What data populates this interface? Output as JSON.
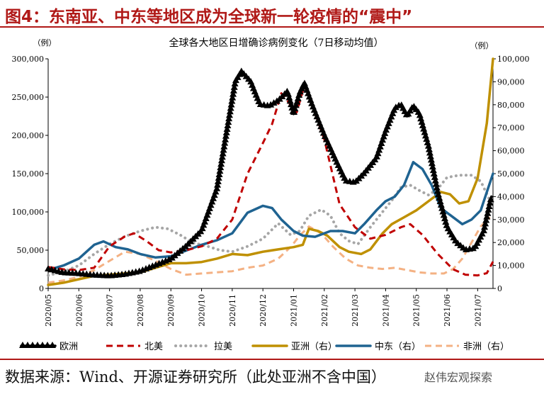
{
  "header": {
    "title": "图4：东南亚、中东等地区成为全球新一轮疫情的“震中”"
  },
  "footer": {
    "source": "数据来源：Wind、开源证券研究所（此处亚洲不含中国）",
    "watermark": "赵伟宏观探索"
  },
  "colors": {
    "title_red": "#b01917",
    "europe": "#000000",
    "north_america": "#c00000",
    "latin_america": "#a6a6a6",
    "asia": "#bf9000",
    "middle_east": "#1f6391",
    "africa": "#f4b183"
  },
  "chart_data": {
    "type": "line",
    "title": "全球各大地区日增确诊病例变化（7日移动均值）",
    "left_unit": "（例）",
    "right_unit": "（例）",
    "ylim_left": [
      0,
      300000
    ],
    "ylim_right": [
      0,
      100000
    ],
    "left_ticks": [
      "0",
      "50,000",
      "100,000",
      "150,000",
      "200,000",
      "250,000",
      "300,000"
    ],
    "right_ticks": [
      "0",
      "10,000",
      "20,000",
      "30,000",
      "40,000",
      "50,000",
      "60,000",
      "70,000",
      "80,000",
      "90,000",
      "100,000"
    ],
    "x_ticks": [
      "2020/05",
      "2020/06",
      "2020/07",
      "2020/08",
      "2020/09",
      "2020/10",
      "2020/11",
      "2020/12",
      "2021/01",
      "2021/02",
      "2021/03",
      "2021/04",
      "2021/05",
      "2021/06",
      "2021/07"
    ],
    "xlim": [
      0,
      14.5
    ],
    "series": [
      {
        "name": "欧洲",
        "axis": "left",
        "style": "solid-triangle",
        "points": [
          [
            0,
            25000
          ],
          [
            0.5,
            20000
          ],
          [
            1,
            19000
          ],
          [
            1.5,
            17000
          ],
          [
            2,
            16000
          ],
          [
            2.5,
            18000
          ],
          [
            3,
            22000
          ],
          [
            3.5,
            30000
          ],
          [
            4,
            38000
          ],
          [
            4.5,
            55000
          ],
          [
            5,
            75000
          ],
          [
            5.5,
            130000
          ],
          [
            5.8,
            200000
          ],
          [
            6.1,
            270000
          ],
          [
            6.3,
            283000
          ],
          [
            6.6,
            270000
          ],
          [
            6.9,
            240000
          ],
          [
            7.2,
            238000
          ],
          [
            7.5,
            245000
          ],
          [
            7.8,
            257000
          ],
          [
            8.0,
            228000
          ],
          [
            8.2,
            255000
          ],
          [
            8.35,
            268000
          ],
          [
            8.6,
            240000
          ],
          [
            9.0,
            200000
          ],
          [
            9.4,
            165000
          ],
          [
            9.7,
            140000
          ],
          [
            10.0,
            138000
          ],
          [
            10.3,
            150000
          ],
          [
            10.7,
            170000
          ],
          [
            11.0,
            205000
          ],
          [
            11.3,
            235000
          ],
          [
            11.5,
            240000
          ],
          [
            11.7,
            225000
          ],
          [
            11.9,
            238000
          ],
          [
            12.1,
            228000
          ],
          [
            12.4,
            185000
          ],
          [
            12.7,
            125000
          ],
          [
            13.0,
            80000
          ],
          [
            13.3,
            60000
          ],
          [
            13.6,
            50000
          ],
          [
            13.9,
            52000
          ],
          [
            14.2,
            75000
          ],
          [
            14.45,
            120000
          ]
        ]
      },
      {
        "name": "北美",
        "axis": "left",
        "style": "dashed",
        "points": [
          [
            0,
            28000
          ],
          [
            0.5,
            25000
          ],
          [
            1,
            24000
          ],
          [
            1.5,
            27000
          ],
          [
            2,
            55000
          ],
          [
            2.5,
            68000
          ],
          [
            2.8,
            72000
          ],
          [
            3.2,
            62000
          ],
          [
            3.6,
            50000
          ],
          [
            4,
            47000
          ],
          [
            4.5,
            50000
          ],
          [
            5,
            55000
          ],
          [
            5.5,
            65000
          ],
          [
            6,
            90000
          ],
          [
            6.5,
            150000
          ],
          [
            7,
            190000
          ],
          [
            7.3,
            215000
          ],
          [
            7.6,
            255000
          ],
          [
            7.9,
            240000
          ],
          [
            8.1,
            230000
          ],
          [
            8.35,
            265000
          ],
          [
            8.6,
            240000
          ],
          [
            9.0,
            195000
          ],
          [
            9.5,
            110000
          ],
          [
            10,
            80000
          ],
          [
            10.5,
            65000
          ],
          [
            11,
            70000
          ],
          [
            11.5,
            80000
          ],
          [
            11.8,
            84000
          ],
          [
            12.2,
            70000
          ],
          [
            12.7,
            45000
          ],
          [
            13.2,
            25000
          ],
          [
            13.6,
            18000
          ],
          [
            14.0,
            17000
          ],
          [
            14.3,
            20000
          ],
          [
            14.5,
            35000
          ]
        ]
      },
      {
        "name": "拉美",
        "axis": "left",
        "style": "dotted",
        "points": [
          [
            0,
            17000
          ],
          [
            0.5,
            22000
          ],
          [
            1,
            30000
          ],
          [
            1.5,
            45000
          ],
          [
            2,
            58000
          ],
          [
            2.5,
            68000
          ],
          [
            3,
            75000
          ],
          [
            3.5,
            80000
          ],
          [
            3.9,
            78000
          ],
          [
            4.3,
            70000
          ],
          [
            4.7,
            60000
          ],
          [
            5.2,
            55000
          ],
          [
            5.6,
            50000
          ],
          [
            6,
            48000
          ],
          [
            6.5,
            55000
          ],
          [
            7,
            65000
          ],
          [
            7.5,
            85000
          ],
          [
            7.9,
            70000
          ],
          [
            8.2,
            75000
          ],
          [
            8.5,
            95000
          ],
          [
            8.9,
            103000
          ],
          [
            9.2,
            95000
          ],
          [
            9.5,
            72000
          ],
          [
            9.8,
            62000
          ],
          [
            10.1,
            58000
          ],
          [
            10.5,
            80000
          ],
          [
            10.9,
            100000
          ],
          [
            11.2,
            115000
          ],
          [
            11.5,
            132000
          ],
          [
            11.8,
            135000
          ],
          [
            12.1,
            128000
          ],
          [
            12.4,
            122000
          ],
          [
            12.7,
            130000
          ],
          [
            13.0,
            145000
          ],
          [
            13.4,
            148000
          ],
          [
            13.8,
            148000
          ],
          [
            14.1,
            140000
          ],
          [
            14.4,
            115000
          ]
        ]
      },
      {
        "name": "亚洲（右）",
        "axis": "right",
        "style": "solid",
        "points": [
          [
            0,
            1500
          ],
          [
            0.5,
            2500
          ],
          [
            1,
            4000
          ],
          [
            1.5,
            5500
          ],
          [
            2,
            6000
          ],
          [
            2.5,
            6500
          ],
          [
            3,
            7000
          ],
          [
            3.5,
            9000
          ],
          [
            4,
            11000
          ],
          [
            4.5,
            11000
          ],
          [
            5,
            11500
          ],
          [
            5.5,
            13000
          ],
          [
            6,
            15000
          ],
          [
            6.5,
            14500
          ],
          [
            7,
            16000
          ],
          [
            7.5,
            17000
          ],
          [
            8,
            18000
          ],
          [
            8.3,
            19000
          ],
          [
            8.5,
            26000
          ],
          [
            8.8,
            25000
          ],
          [
            9.1,
            23000
          ],
          [
            9.5,
            18000
          ],
          [
            9.8,
            16000
          ],
          [
            10.2,
            15000
          ],
          [
            10.5,
            17000
          ],
          [
            10.9,
            24000
          ],
          [
            11.2,
            28000
          ],
          [
            11.6,
            31000
          ],
          [
            12,
            34000
          ],
          [
            12.4,
            38000
          ],
          [
            12.8,
            42000
          ],
          [
            13.1,
            41000
          ],
          [
            13.4,
            37000
          ],
          [
            13.7,
            38000
          ],
          [
            14.0,
            48000
          ],
          [
            14.3,
            72000
          ],
          [
            14.5,
            100000
          ]
        ]
      },
      {
        "name": "中东（右）",
        "axis": "right",
        "style": "solid",
        "points": [
          [
            0,
            8000
          ],
          [
            0.5,
            10000
          ],
          [
            1,
            13000
          ],
          [
            1.5,
            19000
          ],
          [
            1.8,
            20500
          ],
          [
            2.2,
            18000
          ],
          [
            2.6,
            17000
          ],
          [
            3,
            15000
          ],
          [
            3.5,
            13500
          ],
          [
            4,
            14000
          ],
          [
            4.5,
            16500
          ],
          [
            5,
            19000
          ],
          [
            5.5,
            21000
          ],
          [
            6,
            24000
          ],
          [
            6.5,
            33000
          ],
          [
            7,
            36000
          ],
          [
            7.3,
            35000
          ],
          [
            7.6,
            30000
          ],
          [
            8,
            25000
          ],
          [
            8.3,
            23000
          ],
          [
            8.7,
            22500
          ],
          [
            9.2,
            25000
          ],
          [
            9.6,
            25000
          ],
          [
            10,
            24000
          ],
          [
            10.3,
            28000
          ],
          [
            10.7,
            34000
          ],
          [
            11,
            38000
          ],
          [
            11.3,
            40000
          ],
          [
            11.6,
            45000
          ],
          [
            11.9,
            55000
          ],
          [
            12.2,
            52000
          ],
          [
            12.5,
            45000
          ],
          [
            12.8,
            35000
          ],
          [
            13.1,
            32000
          ],
          [
            13.5,
            28000
          ],
          [
            13.8,
            30000
          ],
          [
            14.1,
            34000
          ],
          [
            14.3,
            42000
          ],
          [
            14.5,
            50000
          ]
        ]
      },
      {
        "name": "非洲（右）",
        "axis": "right",
        "style": "dashed",
        "points": [
          [
            0,
            2500
          ],
          [
            0.5,
            3500
          ],
          [
            1,
            5000
          ],
          [
            1.5,
            8000
          ],
          [
            2,
            12000
          ],
          [
            2.5,
            16000
          ],
          [
            3,
            15000
          ],
          [
            3.5,
            12000
          ],
          [
            4,
            8500
          ],
          [
            4.5,
            6000
          ],
          [
            5,
            6500
          ],
          [
            5.5,
            7000
          ],
          [
            6,
            7500
          ],
          [
            6.5,
            9000
          ],
          [
            7,
            10000
          ],
          [
            7.5,
            13000
          ],
          [
            7.9,
            18000
          ],
          [
            8.2,
            23000
          ],
          [
            8.5,
            27000
          ],
          [
            8.9,
            24000
          ],
          [
            9.3,
            18000
          ],
          [
            9.7,
            13000
          ],
          [
            10.1,
            10000
          ],
          [
            10.5,
            9000
          ],
          [
            10.9,
            8500
          ],
          [
            11.3,
            9000
          ],
          [
            11.7,
            8000
          ],
          [
            12.1,
            7000
          ],
          [
            12.5,
            6500
          ],
          [
            12.9,
            6500
          ],
          [
            13.2,
            8500
          ],
          [
            13.5,
            13000
          ],
          [
            13.8,
            20000
          ],
          [
            14.1,
            27000
          ],
          [
            14.4,
            31000
          ]
        ]
      }
    ]
  }
}
